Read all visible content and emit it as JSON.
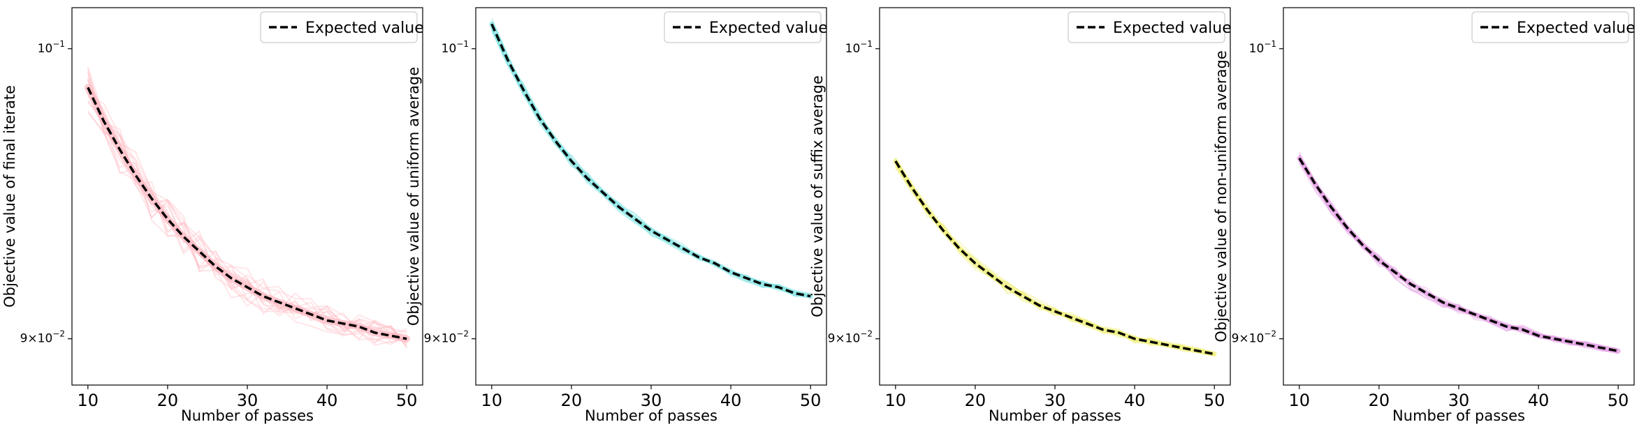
{
  "chart_data": [
    {
      "type": "line",
      "xlabel": "Number of passes",
      "ylabel": "Objective value of final iterate",
      "xlim": [
        8,
        52
      ],
      "xticks": [
        10,
        20,
        30,
        40,
        50
      ],
      "yscale": "log",
      "ylim": [
        0.0885,
        0.1015
      ],
      "yticks": [
        {
          "value": 0.1,
          "base": "10",
          "exp": "−1"
        },
        {
          "value": 0.09,
          "mant": "9",
          "base": "10",
          "exp": "−2"
        }
      ],
      "band_color": "#ffb6c1",
      "legend": {
        "label": "Expected value",
        "position": "top-right"
      },
      "series": [
        {
          "name": "Expected value",
          "style": "dashed",
          "color": "#000000",
          "x": [
            10,
            12,
            14,
            16,
            18,
            20,
            22,
            24,
            26,
            28,
            30,
            32,
            34,
            36,
            38,
            40,
            42,
            44,
            46,
            48,
            50
          ],
          "y": [
            0.0986,
            0.0974,
            0.0964,
            0.0955,
            0.0947,
            0.094,
            0.0934,
            0.0929,
            0.0924,
            0.092,
            0.0917,
            0.0914,
            0.0912,
            0.091,
            0.0908,
            0.0906,
            0.0905,
            0.0904,
            0.0902,
            0.0901,
            0.09
          ]
        }
      ]
    },
    {
      "type": "line",
      "xlabel": "Number of passes",
      "ylabel": "Objective value of uniform average",
      "xlim": [
        8,
        52
      ],
      "xticks": [
        10,
        20,
        30,
        40,
        50
      ],
      "yscale": "log",
      "ylim": [
        0.0885,
        0.1015
      ],
      "yticks": [
        {
          "value": 0.1,
          "base": "10",
          "exp": "−1"
        },
        {
          "value": 0.09,
          "mant": "9",
          "base": "10",
          "exp": "−2"
        }
      ],
      "band_color": "#7fe3e3",
      "legend": {
        "label": "Expected value",
        "position": "top-right"
      },
      "series": [
        {
          "name": "Expected value",
          "style": "dashed",
          "color": "#000000",
          "x": [
            10,
            12,
            14,
            16,
            18,
            20,
            22,
            24,
            26,
            28,
            30,
            32,
            34,
            36,
            38,
            40,
            42,
            44,
            46,
            48,
            50
          ],
          "y": [
            0.1009,
            0.0996,
            0.0985,
            0.0975,
            0.0967,
            0.096,
            0.0954,
            0.0949,
            0.0944,
            0.094,
            0.0936,
            0.0933,
            0.093,
            0.0927,
            0.0925,
            0.0922,
            0.092,
            0.0918,
            0.0917,
            0.0915,
            0.0914
          ]
        }
      ]
    },
    {
      "type": "line",
      "xlabel": "Number of passes",
      "ylabel": "Objective value of suffix average",
      "xlim": [
        8,
        52
      ],
      "xticks": [
        10,
        20,
        30,
        40,
        50
      ],
      "yscale": "log",
      "ylim": [
        0.0885,
        0.1015
      ],
      "yticks": [
        {
          "value": 0.1,
          "base": "10",
          "exp": "−1"
        },
        {
          "value": 0.09,
          "mant": "9",
          "base": "10",
          "exp": "−2"
        }
      ],
      "band_color": "#eeee70",
      "legend": {
        "label": "Expected value",
        "position": "top-right"
      },
      "series": [
        {
          "name": "Expected value",
          "style": "dashed",
          "color": "#000000",
          "x": [
            10,
            12,
            14,
            16,
            18,
            20,
            22,
            24,
            26,
            28,
            30,
            32,
            34,
            36,
            38,
            40,
            42,
            44,
            46,
            48,
            50
          ],
          "y": [
            0.096,
            0.0951,
            0.0943,
            0.0936,
            0.093,
            0.0925,
            0.0921,
            0.0917,
            0.0914,
            0.0911,
            0.0909,
            0.0907,
            0.0905,
            0.0903,
            0.0902,
            0.09,
            0.0899,
            0.0898,
            0.0897,
            0.0896,
            0.0895
          ]
        }
      ]
    },
    {
      "type": "line",
      "xlabel": "Number of passes",
      "ylabel": "Objective value of non-uniform average",
      "xlim": [
        8,
        52
      ],
      "xticks": [
        10,
        20,
        30,
        40,
        50
      ],
      "yscale": "log",
      "ylim": [
        0.0885,
        0.1015
      ],
      "yticks": [
        {
          "value": 0.1,
          "base": "10",
          "exp": "−1"
        },
        {
          "value": 0.09,
          "mant": "9",
          "base": "10",
          "exp": "−2"
        }
      ],
      "band_color": "#e39ae3",
      "legend": {
        "label": "Expected value",
        "position": "top-right"
      },
      "series": [
        {
          "name": "Expected value",
          "style": "dashed",
          "color": "#000000",
          "x": [
            10,
            12,
            14,
            16,
            18,
            20,
            22,
            24,
            26,
            28,
            30,
            32,
            34,
            36,
            38,
            40,
            42,
            44,
            46,
            48,
            50
          ],
          "y": [
            0.0961,
            0.0952,
            0.0944,
            0.0937,
            0.0931,
            0.0926,
            0.0922,
            0.0918,
            0.0915,
            0.0912,
            0.091,
            0.0908,
            0.0906,
            0.0904,
            0.0903,
            0.0901,
            0.09,
            0.0899,
            0.0898,
            0.0897,
            0.0896
          ]
        }
      ]
    }
  ]
}
